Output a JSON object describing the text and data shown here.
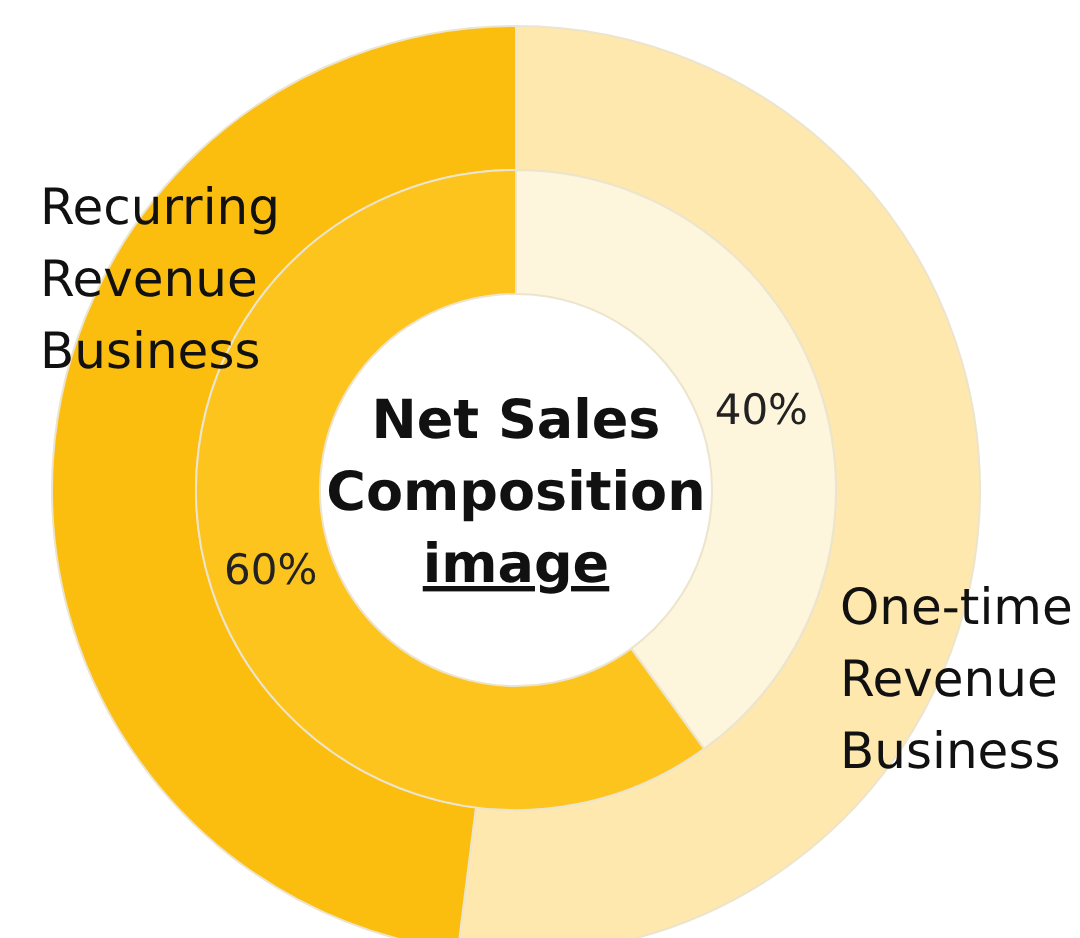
{
  "chart_data": {
    "type": "donut",
    "title": "Net Sales Composition image",
    "categories": [
      "One-time Revenue Business",
      "Recurring Revenue Business"
    ],
    "series": [
      {
        "values": [
          40,
          60
        ],
        "colors": [
          "#fdf5dc",
          "#fcc41c"
        ],
        "value_labels": [
          "40%",
          "60%"
        ]
      },
      {
        "values": [
          52,
          48
        ],
        "colors": [
          "#fee8ae",
          "#fbbd0e"
        ]
      }
    ]
  }
}
